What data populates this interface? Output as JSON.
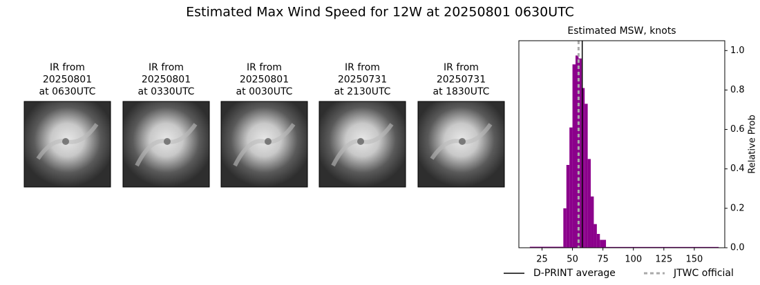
{
  "title": "Estimated Max Wind Speed for 12W at 20250801 0630UTC",
  "panels": [
    {
      "lines": [
        "IR from",
        "20250801",
        "at 0630UTC"
      ]
    },
    {
      "lines": [
        "IR from",
        "20250801",
        "at 0330UTC"
      ]
    },
    {
      "lines": [
        "IR from",
        "20250801",
        "at 0030UTC"
      ]
    },
    {
      "lines": [
        "IR from",
        "20250731",
        "at 2130UTC"
      ]
    },
    {
      "lines": [
        "IR from",
        "20250731",
        "at 1830UTC"
      ]
    }
  ],
  "chart_data": {
    "type": "histogram",
    "title": "Estimated MSW, knots",
    "y_label": "Relative Prob",
    "bins": [
      15,
      42.5,
      45,
      47.5,
      50,
      52.5,
      55,
      57.5,
      60,
      62.5,
      65,
      67.5,
      70,
      72.5,
      77.5,
      170
    ],
    "values": [
      0.005,
      0.2,
      0.42,
      0.61,
      0.93,
      0.975,
      0.96,
      0.81,
      0.73,
      0.45,
      0.26,
      0.12,
      0.07,
      0.04,
      0.004
    ],
    "color": "#8b008b",
    "xlim": [
      6,
      175
    ],
    "xticks": [
      25,
      50,
      75,
      100,
      125,
      150
    ],
    "ylim": [
      0,
      1.05
    ],
    "yticks": [
      {
        "value": 0,
        "label": "0.0"
      },
      {
        "value": 0.2,
        "label": "0.2"
      },
      {
        "value": 0.4,
        "label": "0.4"
      },
      {
        "value": 0.6,
        "label": "0.6"
      },
      {
        "value": 0.8,
        "label": "0.8"
      },
      {
        "value": 1,
        "label": "1.0"
      }
    ],
    "lines": [
      {
        "name": "D-PRINT average",
        "x": 58,
        "color": "#000000",
        "style": "solid"
      },
      {
        "name": "JTWC official",
        "x": 55,
        "color": "#aaaaaa",
        "style": "dotted"
      }
    ]
  }
}
